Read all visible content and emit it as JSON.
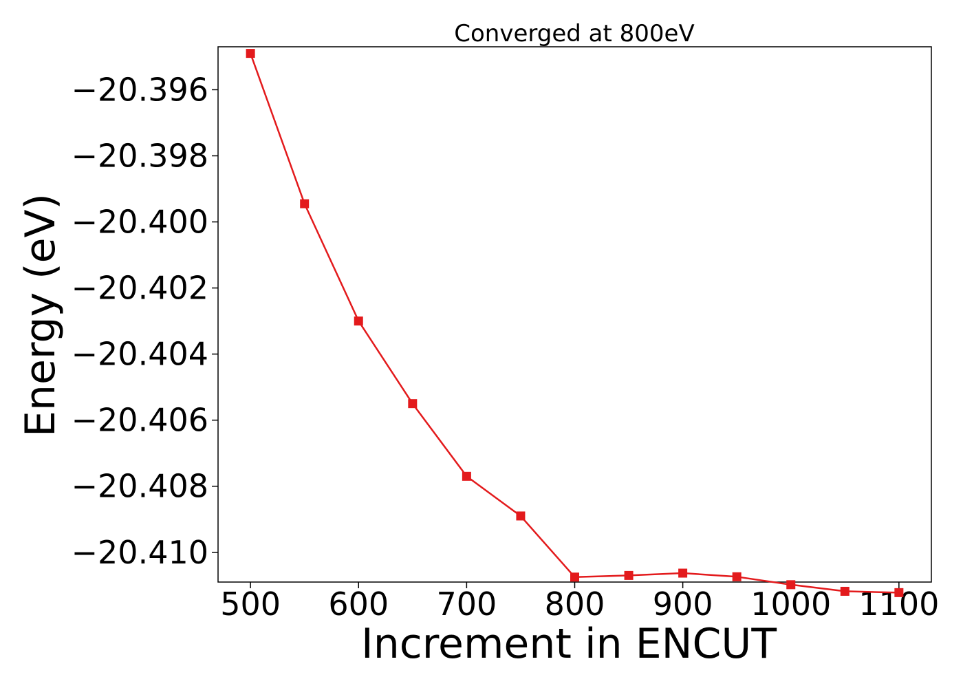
{
  "chart_data": {
    "type": "line",
    "title": "Converged at 800eV",
    "xlabel": "Increment in ENCUT",
    "ylabel": "Energy (eV)",
    "xlim": [
      470,
      1130
    ],
    "ylim": [
      -20.4109,
      -20.3947
    ],
    "xticks": [
      500,
      600,
      700,
      800,
      900,
      1000,
      1100
    ],
    "yticks": [
      -20.396,
      -20.398,
      -20.4,
      -20.402,
      -20.404,
      -20.406,
      -20.408,
      -20.41
    ],
    "ytick_labels": [
      "−20.396",
      "−20.398",
      "−20.400",
      "−20.402",
      "−20.404",
      "−20.406",
      "−20.408",
      "−20.410"
    ],
    "grid": false,
    "series": [
      {
        "color": "#e31a1c",
        "marker": "square",
        "x": [
          500,
          550,
          600,
          650,
          700,
          750,
          800,
          850,
          900,
          950,
          1000,
          1050,
          1100
        ],
        "y": [
          -20.3949,
          -20.39945,
          -20.403,
          -20.4055,
          -20.4077,
          -20.4089,
          -20.41075,
          -20.4107,
          -20.41063,
          -20.41074,
          -20.41098,
          -20.41118,
          -20.41122
        ]
      }
    ]
  }
}
